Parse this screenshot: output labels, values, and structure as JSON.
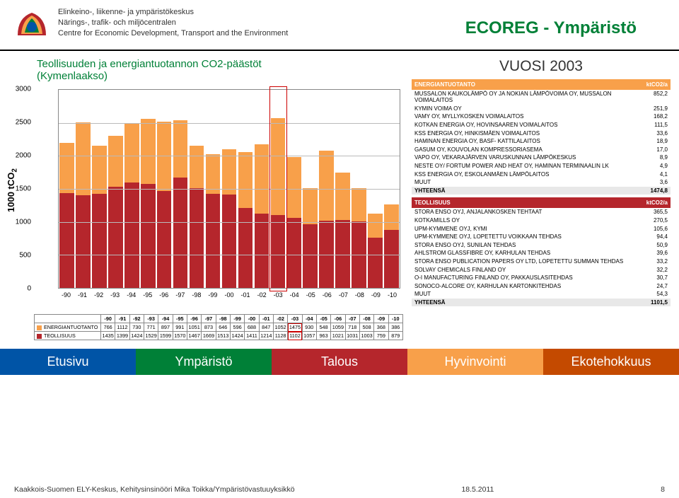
{
  "header": {
    "org_fi": "Elinkeino-, liikenne- ja ympäristökeskus",
    "org_sv": "Närings-, trafik- och miljöcentralen",
    "org_en": "Centre for Economic Development, Transport and the Environment",
    "ecoreg": "ECOREG - Ympäristö"
  },
  "chart": {
    "title1": "Teollisuuden ja energiantuotannon CO2-päästöt",
    "title2": "(Kymenlaakso)",
    "ylabel": "1000 tCO",
    "ylabel_sub": "2",
    "type": "stacked-bar",
    "ymax": 3000,
    "ytick_step": 500,
    "yticks": [
      0,
      500,
      1000,
      1500,
      2000,
      2500,
      3000
    ],
    "categories": [
      "-90",
      "-91",
      "-92",
      "-93",
      "-94",
      "-95",
      "-96",
      "-97",
      "-98",
      "-99",
      "-00",
      "-01",
      "-02",
      "-03",
      "-04",
      "-05",
      "-06",
      "-07",
      "-08",
      "-09",
      "-10"
    ],
    "series": [
      {
        "name": "ENERGIANTUOTANTO",
        "color": "#f8a04a",
        "values": [
          766,
          1112,
          730,
          771,
          897,
          991,
          1051,
          873,
          646,
          596,
          688,
          847,
          1052,
          1475,
          930,
          548,
          1059,
          718,
          508,
          368,
          386
        ]
      },
      {
        "name": "TEOLLISUUS",
        "color": "#b5262c",
        "values": [
          1435,
          1399,
          1424,
          1529,
          1599,
          1570,
          1467,
          1669,
          1513,
          1424,
          1411,
          1214,
          1128,
          1102,
          1057,
          963,
          1021,
          1031,
          1003,
          759,
          879
        ]
      }
    ],
    "highlight_index": 13,
    "background_color": "#ffffff",
    "grid_color": "#bbbbbb"
  },
  "side": {
    "year_label": "VUOSI 2003",
    "energy": {
      "title": "ENERGIANTUOTANTO",
      "unit": "ktCO2/a",
      "rows": [
        {
          "n": "MUSSALON KAUKOLÄMPÖ OY JA NOKIAN LÄMPÖVOIMA OY, MUSSALON VOIMALAITOS",
          "v": "852,2"
        },
        {
          "n": "KYMIN VOIMA OY",
          "v": "251,9"
        },
        {
          "n": "VAMY OY, MYLLYKOSKEN VOIMALAITOS",
          "v": "168,2"
        },
        {
          "n": "KOTKAN ENERGIA OY, HOVINSAAREN VOIMALAITOS",
          "v": "111,5"
        },
        {
          "n": "KSS ENERGIA OY, HINKISMÄEN VOIMALAITOS",
          "v": "33,6"
        },
        {
          "n": "HAMINAN ENERGIA OY, BASF- KATTILALAITOS",
          "v": "18,9"
        },
        {
          "n": "GASUM OY, KOUVOLAN KOMPRESSORIASEMA",
          "v": "17,0"
        },
        {
          "n": "VAPO OY, VEKARAJÄRVEN VARUSKUNNAN LÄMPÖKESKUS",
          "v": "8,9"
        },
        {
          "n": "NESTE OY/ FORTUM POWER AND HEAT OY, HAMINAN TERMINAALIN LK",
          "v": "4,9"
        },
        {
          "n": "KSS ENERGIA OY, ESKOLANMÄEN LÄMPÖLAITOS",
          "v": "4,1"
        },
        {
          "n": "MUUT",
          "v": "3,6"
        }
      ],
      "total_label": "YHTEENSÄ",
      "total_value": "1474,8"
    },
    "industry": {
      "title": "TEOLLISUUS",
      "unit": "ktCO2/a",
      "rows": [
        {
          "n": "STORA ENSO OYJ, ANJALANKOSKEN TEHTAAT",
          "v": "365,5"
        },
        {
          "n": "KOTKAMILLS OY",
          "v": "270,5"
        },
        {
          "n": "UPM-KYMMENE OYJ, KYMI",
          "v": "105,6"
        },
        {
          "n": "UPM-KYMMENE OYJ, LOPETETTU VOIKKAAN TEHDAS",
          "v": "94,4"
        },
        {
          "n": "STORA ENSO OYJ, SUNILAN TEHDAS",
          "v": "50,9"
        },
        {
          "n": "AHLSTROM GLASSFIBRE OY, KARHULAN TEHDAS",
          "v": "39,6"
        },
        {
          "n": "STORA ENSO PUBLICATION PAPERS OY LTD, LOPETETTU SUMMAN TEHDAS",
          "v": "33,2"
        },
        {
          "n": "SOLVAY CHEMICALS FINLAND OY",
          "v": "32,2"
        },
        {
          "n": "O-I MANUFACTURING FINLAND OY, PAKKAUSLASITEHDAS",
          "v": "30,7"
        },
        {
          "n": "SONOCO-ALCORE OY, KARHULAN KARTONKITEHDAS",
          "v": "24,7"
        },
        {
          "n": "MUUT",
          "v": "54,3"
        }
      ],
      "total_label": "YHTEENSÄ",
      "total_value": "1101,5"
    }
  },
  "nav": {
    "items": [
      {
        "label": "Etusivu",
        "color": "#0054a6"
      },
      {
        "label": "Ympäristö",
        "color": "#008037"
      },
      {
        "label": "Talous",
        "color": "#b5262c"
      },
      {
        "label": "Hyvinvointi",
        "color": "#f8a04a"
      },
      {
        "label": "Ekotehokkuus",
        "color": "#c44a00"
      }
    ]
  },
  "footer": {
    "left": "Kaakkois-Suomen ELY-Keskus, Kehitysinsinööri Mika Toikka/Ympäristövastuuyksikkö",
    "date": "18.5.2011",
    "page": "8"
  }
}
